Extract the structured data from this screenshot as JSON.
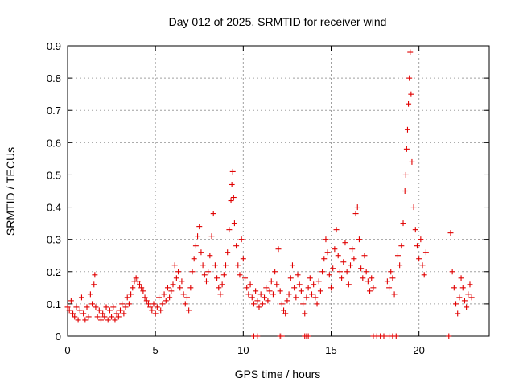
{
  "chart_data": {
    "type": "scatter",
    "title": "Day 012 of 2025, SRMTID for receiver wind",
    "xlabel": "GPS time / hours",
    "ylabel": "SRMTID / TECUs",
    "xlim": [
      0,
      24
    ],
    "ylim": [
      0,
      0.9
    ],
    "xticks": [
      0,
      5,
      10,
      15,
      20
    ],
    "xtick_labels": [
      "0",
      "5",
      "10",
      "15",
      "20"
    ],
    "yticks": [
      0,
      0.1,
      0.2,
      0.3,
      0.4,
      0.5,
      0.6,
      0.7,
      0.8,
      0.9
    ],
    "ytick_labels": [
      "0",
      "0.1",
      "0.2",
      "0.3",
      "0.4",
      "0.5",
      "0.6",
      "0.7",
      "0.8",
      "0.9"
    ],
    "grid": true,
    "marker": "+",
    "color": "#e00000",
    "series": [
      {
        "name": "SRMTID",
        "points": [
          [
            0.0,
            0.09
          ],
          [
            0.1,
            0.08
          ],
          [
            0.2,
            0.11
          ],
          [
            0.3,
            0.07
          ],
          [
            0.4,
            0.06
          ],
          [
            0.5,
            0.09
          ],
          [
            0.6,
            0.05
          ],
          [
            0.7,
            0.08
          ],
          [
            0.8,
            0.12
          ],
          [
            0.9,
            0.07
          ],
          [
            1.0,
            0.05
          ],
          [
            1.1,
            0.09
          ],
          [
            1.2,
            0.06
          ],
          [
            1.3,
            0.13
          ],
          [
            1.4,
            0.1
          ],
          [
            1.5,
            0.16
          ],
          [
            1.55,
            0.19
          ],
          [
            1.6,
            0.09
          ],
          [
            1.7,
            0.06
          ],
          [
            1.8,
            0.08
          ],
          [
            1.9,
            0.05
          ],
          [
            2.0,
            0.07
          ],
          [
            2.1,
            0.06
          ],
          [
            2.2,
            0.09
          ],
          [
            2.3,
            0.05
          ],
          [
            2.4,
            0.08
          ],
          [
            2.5,
            0.06
          ],
          [
            2.6,
            0.09
          ],
          [
            2.7,
            0.05
          ],
          [
            2.8,
            0.07
          ],
          [
            2.9,
            0.06
          ],
          [
            3.0,
            0.08
          ],
          [
            3.1,
            0.1
          ],
          [
            3.2,
            0.07
          ],
          [
            3.3,
            0.09
          ],
          [
            3.4,
            0.12
          ],
          [
            3.5,
            0.1
          ],
          [
            3.6,
            0.13
          ],
          [
            3.7,
            0.15
          ],
          [
            3.8,
            0.17
          ],
          [
            3.9,
            0.18
          ],
          [
            4.0,
            0.17
          ],
          [
            4.1,
            0.16
          ],
          [
            4.2,
            0.15
          ],
          [
            4.3,
            0.14
          ],
          [
            4.4,
            0.12
          ],
          [
            4.5,
            0.11
          ],
          [
            4.6,
            0.1
          ],
          [
            4.7,
            0.09
          ],
          [
            4.8,
            0.08
          ],
          [
            4.9,
            0.1
          ],
          [
            5.0,
            0.07
          ],
          [
            5.1,
            0.09
          ],
          [
            5.2,
            0.12
          ],
          [
            5.3,
            0.08
          ],
          [
            5.4,
            0.1
          ],
          [
            5.5,
            0.13
          ],
          [
            5.6,
            0.11
          ],
          [
            5.7,
            0.15
          ],
          [
            5.8,
            0.12
          ],
          [
            5.9,
            0.14
          ],
          [
            6.0,
            0.16
          ],
          [
            6.1,
            0.22
          ],
          [
            6.2,
            0.18
          ],
          [
            6.3,
            0.2
          ],
          [
            6.4,
            0.15
          ],
          [
            6.5,
            0.17
          ],
          [
            6.6,
            0.13
          ],
          [
            6.7,
            0.1
          ],
          [
            6.8,
            0.12
          ],
          [
            6.9,
            0.08
          ],
          [
            7.0,
            0.15
          ],
          [
            7.1,
            0.2
          ],
          [
            7.2,
            0.24
          ],
          [
            7.3,
            0.28
          ],
          [
            7.4,
            0.31
          ],
          [
            7.5,
            0.34
          ],
          [
            7.6,
            0.26
          ],
          [
            7.7,
            0.22
          ],
          [
            7.8,
            0.19
          ],
          [
            7.9,
            0.17
          ],
          [
            8.0,
            0.2
          ],
          [
            8.1,
            0.25
          ],
          [
            8.2,
            0.31
          ],
          [
            8.3,
            0.38
          ],
          [
            8.4,
            0.22
          ],
          [
            8.5,
            0.18
          ],
          [
            8.6,
            0.15
          ],
          [
            8.7,
            0.13
          ],
          [
            8.8,
            0.16
          ],
          [
            8.9,
            0.19
          ],
          [
            9.0,
            0.22
          ],
          [
            9.1,
            0.26
          ],
          [
            9.2,
            0.33
          ],
          [
            9.3,
            0.42
          ],
          [
            9.35,
            0.47
          ],
          [
            9.4,
            0.51
          ],
          [
            9.45,
            0.43
          ],
          [
            9.5,
            0.35
          ],
          [
            9.6,
            0.28
          ],
          [
            9.7,
            0.22
          ],
          [
            9.8,
            0.19
          ],
          [
            9.9,
            0.3
          ],
          [
            10.0,
            0.24
          ],
          [
            10.1,
            0.18
          ],
          [
            10.2,
            0.15
          ],
          [
            10.3,
            0.13
          ],
          [
            10.4,
            0.16
          ],
          [
            10.5,
            0.12
          ],
          [
            10.6,
            0.1
          ],
          [
            10.7,
            0.14
          ],
          [
            10.8,
            0.11
          ],
          [
            10.9,
            0.09
          ],
          [
            11.0,
            0.13
          ],
          [
            11.1,
            0.1
          ],
          [
            11.2,
            0.12
          ],
          [
            11.3,
            0.15
          ],
          [
            11.4,
            0.11
          ],
          [
            11.5,
            0.14
          ],
          [
            11.6,
            0.17
          ],
          [
            11.7,
            0.13
          ],
          [
            11.8,
            0.2
          ],
          [
            11.9,
            0.16
          ],
          [
            12.0,
            0.27
          ],
          [
            12.1,
            0.14
          ],
          [
            12.2,
            0.1
          ],
          [
            12.3,
            0.08
          ],
          [
            12.4,
            0.07
          ],
          [
            12.5,
            0.11
          ],
          [
            12.6,
            0.13
          ],
          [
            12.7,
            0.18
          ],
          [
            12.8,
            0.22
          ],
          [
            12.9,
            0.15
          ],
          [
            13.0,
            0.12
          ],
          [
            13.1,
            0.19
          ],
          [
            13.2,
            0.16
          ],
          [
            13.3,
            0.14
          ],
          [
            13.4,
            0.1
          ],
          [
            13.5,
            0.07
          ],
          [
            13.6,
            0.12
          ],
          [
            13.7,
            0.15
          ],
          [
            13.8,
            0.18
          ],
          [
            13.9,
            0.13
          ],
          [
            14.0,
            0.16
          ],
          [
            14.1,
            0.12
          ],
          [
            14.2,
            0.1
          ],
          [
            14.3,
            0.17
          ],
          [
            14.4,
            0.14
          ],
          [
            14.5,
            0.2
          ],
          [
            14.6,
            0.24
          ],
          [
            14.7,
            0.3
          ],
          [
            14.8,
            0.26
          ],
          [
            14.9,
            0.19
          ],
          [
            15.0,
            0.15
          ],
          [
            15.1,
            0.21
          ],
          [
            15.2,
            0.27
          ],
          [
            15.3,
            0.33
          ],
          [
            15.4,
            0.25
          ],
          [
            15.5,
            0.2
          ],
          [
            15.6,
            0.18
          ],
          [
            15.7,
            0.23
          ],
          [
            15.8,
            0.29
          ],
          [
            15.9,
            0.2
          ],
          [
            16.0,
            0.16
          ],
          [
            16.1,
            0.22
          ],
          [
            16.2,
            0.27
          ],
          [
            16.3,
            0.24
          ],
          [
            16.4,
            0.38
          ],
          [
            16.5,
            0.4
          ],
          [
            16.6,
            0.3
          ],
          [
            16.7,
            0.21
          ],
          [
            16.8,
            0.18
          ],
          [
            16.9,
            0.25
          ],
          [
            17.0,
            0.2
          ],
          [
            17.1,
            0.17
          ],
          [
            17.2,
            0.14
          ],
          [
            17.3,
            0.18
          ],
          [
            17.4,
            0.15
          ],
          [
            18.2,
            0.17
          ],
          [
            18.3,
            0.15
          ],
          [
            18.4,
            0.2
          ],
          [
            18.5,
            0.18
          ],
          [
            18.6,
            0.13
          ],
          [
            18.8,
            0.25
          ],
          [
            18.9,
            0.22
          ],
          [
            19.0,
            0.28
          ],
          [
            19.1,
            0.35
          ],
          [
            19.2,
            0.45
          ],
          [
            19.25,
            0.5
          ],
          [
            19.3,
            0.58
          ],
          [
            19.35,
            0.64
          ],
          [
            19.4,
            0.72
          ],
          [
            19.45,
            0.8
          ],
          [
            19.5,
            0.88
          ],
          [
            19.55,
            0.75
          ],
          [
            19.6,
            0.54
          ],
          [
            19.7,
            0.4
          ],
          [
            19.8,
            0.33
          ],
          [
            19.9,
            0.28
          ],
          [
            20.0,
            0.24
          ],
          [
            20.1,
            0.3
          ],
          [
            20.2,
            0.22
          ],
          [
            20.3,
            0.19
          ],
          [
            20.4,
            0.26
          ],
          [
            21.8,
            0.32
          ],
          [
            21.9,
            0.2
          ],
          [
            22.0,
            0.15
          ],
          [
            22.1,
            0.1
          ],
          [
            22.2,
            0.07
          ],
          [
            22.3,
            0.12
          ],
          [
            22.4,
            0.18
          ],
          [
            22.5,
            0.15
          ],
          [
            22.6,
            0.11
          ],
          [
            22.7,
            0.09
          ],
          [
            22.8,
            0.13
          ],
          [
            22.9,
            0.16
          ],
          [
            23.0,
            0.12
          ]
        ]
      }
    ],
    "zero_markers": [
      10.6,
      10.8,
      12.1,
      12.2,
      13.5,
      13.6,
      13.7,
      17.4,
      17.6,
      17.8,
      18.0,
      18.3,
      18.5,
      18.7,
      21.7
    ]
  }
}
